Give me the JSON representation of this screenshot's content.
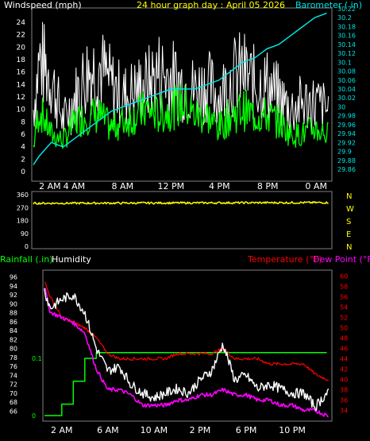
{
  "colors": {
    "background": "#000000",
    "frame": "#808080",
    "wind_avg": "#00ff00",
    "wind_gust": "#ffffff",
    "barometer": "#00e5e5",
    "direction": "#ffff00",
    "rainfall": "#00ff00",
    "humidity": "#ffffff",
    "temperature": "#ff0000",
    "dew_point": "#ff00ff",
    "title": "#ffff00",
    "tick_text": "#ffffff"
  },
  "chart_data": [
    {
      "type": "line",
      "title": "24 hour graph day : April 05 2026",
      "left_axis_label": "Windspeed (mph)",
      "right_axis_label": "Barometer ( in)",
      "x_ticks": [
        "2 AM",
        "4 AM",
        "8 AM",
        "12 PM",
        "4 PM",
        "8 PM",
        "0 AM"
      ],
      "x_tick_hours": [
        2,
        4,
        8,
        12,
        16,
        20,
        24
      ],
      "x_range_hours": [
        0.5,
        25.3
      ],
      "y_left_ticks": [
        "0",
        "2",
        "4",
        "6",
        "8",
        "10",
        "12",
        "14",
        "16",
        "18",
        "20",
        "22",
        "24"
      ],
      "y_left_range": [
        0,
        24
      ],
      "y_right_ticks": [
        "29.86",
        "29.88",
        "29.9",
        "29.92",
        "29.94",
        "29.96",
        "29.98",
        "30",
        "30.02",
        "30.04",
        "30.06",
        "30.08",
        "30.1",
        "30.12",
        "30.14",
        "30.16",
        "30.18",
        "30.2",
        "30.22"
      ],
      "y_right_range": [
        29.86,
        30.22
      ],
      "grid": false,
      "series": [
        {
          "name": "Windspeed",
          "axis": "left",
          "x": [
            0.5,
            1,
            2,
            3,
            4,
            5,
            6,
            7,
            8,
            9,
            10,
            11,
            12,
            13,
            14,
            15,
            16,
            17,
            18,
            19,
            20,
            21,
            22,
            23,
            24,
            25
          ],
          "values": [
            4,
            10,
            6,
            5,
            8,
            9,
            9,
            7,
            8,
            9,
            10,
            9,
            10,
            11,
            9,
            9,
            7,
            9,
            10,
            9,
            9,
            8,
            6,
            6,
            7,
            6
          ]
        },
        {
          "name": "Gust",
          "axis": "left",
          "x": [
            0.5,
            1,
            2,
            3,
            4,
            5,
            6,
            7,
            8,
            9,
            10,
            11,
            12,
            13,
            14,
            15,
            16,
            17,
            18,
            19,
            20,
            21,
            22,
            23,
            24,
            25
          ],
          "values": [
            10,
            18,
            15,
            8,
            12,
            16,
            17,
            14,
            12,
            13,
            14,
            16,
            15,
            14,
            13,
            14,
            12,
            15,
            16,
            14,
            14,
            12,
            10,
            11,
            11,
            10
          ]
        },
        {
          "name": "Barometer",
          "axis": "right",
          "x": [
            0.5,
            1,
            2,
            3,
            4,
            5,
            6,
            7,
            8,
            9,
            10,
            11,
            12,
            13,
            14,
            15,
            16,
            17,
            18,
            19,
            20,
            21,
            22,
            23,
            24,
            25
          ],
          "values": [
            29.87,
            29.89,
            29.92,
            29.91,
            29.93,
            29.95,
            29.97,
            29.99,
            30.0,
            30.01,
            30.02,
            30.03,
            30.04,
            30.04,
            30.04,
            30.05,
            30.06,
            30.08,
            30.1,
            30.11,
            30.13,
            30.14,
            30.16,
            30.18,
            30.2,
            30.21
          ]
        }
      ]
    },
    {
      "type": "line",
      "left_ticks": [
        "360",
        "270",
        "180",
        "90",
        "0"
      ],
      "right_labels": [
        "N",
        "W",
        "S",
        "E",
        "N"
      ],
      "y_range": [
        0,
        360
      ],
      "x_range_hours": [
        0.5,
        25.3
      ],
      "series": [
        {
          "name": "Wind direction",
          "x": [
            0.5,
            25
          ],
          "values": [
            300,
            305
          ]
        }
      ]
    },
    {
      "type": "line",
      "legend_left": [
        "Rainfall (.in)",
        "Humidity"
      ],
      "legend_right": [
        "Temperature (°F)",
        "Dew Point (°F)"
      ],
      "x_ticks": [
        "2 AM",
        "6 AM",
        "10 AM",
        "2 PM",
        "6 PM",
        "10 PM"
      ],
      "x_tick_hours": [
        2,
        6,
        10,
        14,
        18,
        22
      ],
      "x_range_hours": [
        0.5,
        25.3
      ],
      "y_left_ticks": [
        "66",
        "68",
        "70",
        "72",
        "74",
        "76",
        "78",
        "80",
        "82",
        "84",
        "86",
        "88",
        "90",
        "92",
        "94",
        "96"
      ],
      "y_left_range": [
        65,
        97
      ],
      "y_right_ticks": [
        "34",
        "36",
        "38",
        "40",
        "42",
        "44",
        "46",
        "48",
        "50",
        "52",
        "54",
        "56",
        "58",
        "60"
      ],
      "y_right_range": [
        33,
        61
      ],
      "rain_ticks": [
        "0",
        "0.1"
      ],
      "rain_range": [
        0,
        0.25
      ],
      "grid": false,
      "series": [
        {
          "name": "Humidity",
          "axis": "left",
          "x": [
            0.5,
            1,
            2,
            3,
            4,
            5,
            6,
            7,
            8,
            9,
            10,
            11,
            12,
            13,
            14,
            15,
            16,
            17,
            18,
            19,
            20,
            21,
            22,
            23,
            24,
            25
          ],
          "values": [
            93,
            89,
            91,
            92,
            88,
            80,
            75,
            76,
            72,
            70,
            69,
            70,
            71,
            70,
            73,
            75,
            81,
            73,
            74,
            71,
            72,
            71,
            70,
            70,
            67,
            70
          ]
        },
        {
          "name": "Rainfall",
          "axis": "rain",
          "x": [
            0.5,
            1,
            2,
            3,
            4,
            5,
            24.9,
            25
          ],
          "values": [
            0,
            0,
            0.02,
            0.06,
            0.1,
            0.11,
            0.11,
            0.11
          ]
        },
        {
          "name": "Temperature",
          "axis": "right",
          "x": [
            0.5,
            1,
            2,
            3,
            4,
            5,
            6,
            7,
            8,
            9,
            10,
            11,
            12,
            13,
            14,
            15,
            16,
            17,
            18,
            19,
            20,
            21,
            22,
            23,
            24,
            25
          ],
          "values": [
            59,
            56,
            52,
            51,
            50,
            48,
            45,
            44,
            44,
            44,
            44,
            44,
            45,
            45,
            45,
            45,
            46,
            44,
            44,
            44,
            43,
            43,
            43,
            43,
            41,
            40
          ]
        },
        {
          "name": "Dew Point",
          "axis": "right",
          "x": [
            0.5,
            1,
            2,
            3,
            4,
            5,
            6,
            7,
            8,
            9,
            10,
            11,
            12,
            13,
            14,
            15,
            16,
            17,
            18,
            19,
            20,
            21,
            22,
            23,
            24,
            25
          ],
          "values": [
            58,
            53,
            52,
            51,
            49,
            42,
            38,
            38,
            37,
            35,
            35,
            35,
            36,
            36,
            37,
            37,
            38,
            37,
            37,
            36,
            36,
            35,
            35,
            34,
            34,
            33
          ]
        }
      ]
    }
  ]
}
